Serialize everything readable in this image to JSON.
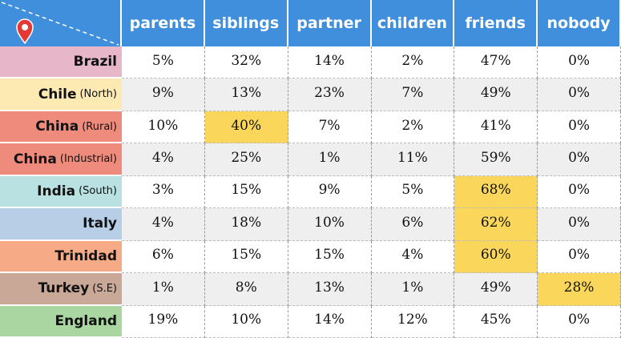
{
  "table": {
    "columns": [
      "parents",
      "siblings",
      "partner",
      "children",
      "friends",
      "nobody"
    ],
    "rows": [
      {
        "name": "Brazil",
        "cells": [
          "5%",
          "32%",
          "14%",
          "2%",
          "47%",
          "0%"
        ]
      },
      {
        "name": "Chile",
        "note": "(North)",
        "cells": [
          "9%",
          "13%",
          "23%",
          "7%",
          "49%",
          "0%"
        ]
      },
      {
        "name": "China",
        "note": "(Rural)",
        "cells": [
          "10%",
          "40%",
          "7%",
          "2%",
          "41%",
          "0%"
        ]
      },
      {
        "name": "China",
        "note": "(Industrial)",
        "cells": [
          "4%",
          "25%",
          "1%",
          "11%",
          "59%",
          "0%"
        ]
      },
      {
        "name": "India",
        "note": "(South)",
        "cells": [
          "3%",
          "15%",
          "9%",
          "5%",
          "68%",
          "0%"
        ]
      },
      {
        "name": "Italy",
        "cells": [
          "4%",
          "18%",
          "10%",
          "6%",
          "62%",
          "0%"
        ]
      },
      {
        "name": "Trinidad",
        "cells": [
          "6%",
          "15%",
          "15%",
          "4%",
          "60%",
          "0%"
        ]
      },
      {
        "name": "Turkey",
        "note": "(S.E)",
        "cells": [
          "1%",
          "8%",
          "13%",
          "1%",
          "49%",
          "28%"
        ]
      },
      {
        "name": "England",
        "cells": [
          "19%",
          "10%",
          "14%",
          "12%",
          "45%",
          "0%"
        ]
      }
    ]
  }
}
